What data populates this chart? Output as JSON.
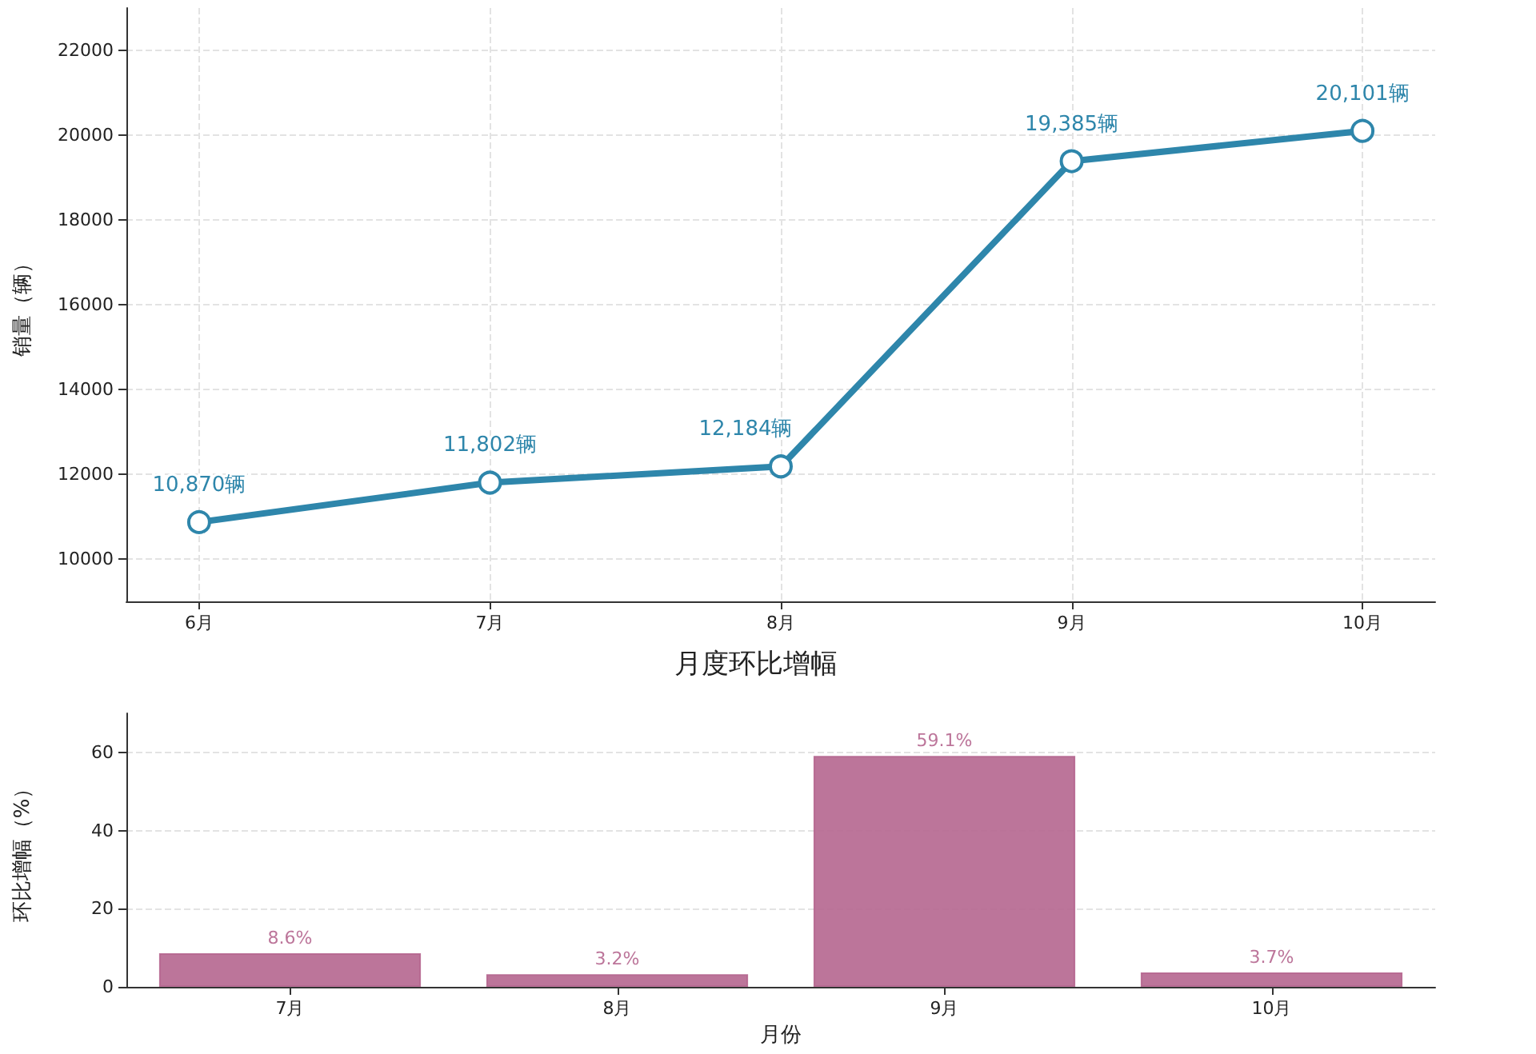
{
  "chart_data": [
    {
      "type": "line",
      "categories": [
        "6月",
        "7月",
        "8月",
        "9月",
        "10月"
      ],
      "series": [
        {
          "color": "#2e86ab",
          "values": [
            10870,
            11802,
            12184,
            19385,
            20101
          ],
          "value_labels": [
            "10,870辆",
            "11,802辆",
            "12,184辆",
            "19,385辆",
            "20,101辆"
          ]
        }
      ],
      "ylabel": "销量（辆）",
      "ylim": [
        9000,
        23000
      ],
      "yticks": [
        10000,
        12000,
        14000,
        16000,
        18000,
        20000,
        22000
      ],
      "grid": true,
      "marker": "circle",
      "line_style": "solid"
    },
    {
      "type": "bar",
      "title": "月度环比增幅",
      "categories": [
        "7月",
        "8月",
        "9月",
        "10月"
      ],
      "series": [
        {
          "color": "#b5668f",
          "values": [
            8.6,
            3.2,
            59.1,
            3.7
          ],
          "value_labels": [
            "8.6%",
            "3.2%",
            "59.1%",
            "3.7%"
          ]
        }
      ],
      "xlabel": "月份",
      "ylabel": "环比增幅（%）",
      "ylim": [
        0,
        70
      ],
      "yticks": [
        0,
        20,
        40,
        60
      ],
      "grid": "y"
    }
  ]
}
